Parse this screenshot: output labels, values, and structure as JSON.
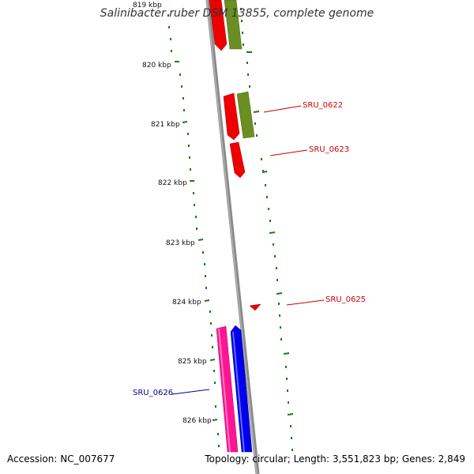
{
  "title": "Salinibacter ruber DSM 13855, complete genome",
  "footer": {
    "accession": "Accession: NC_007677",
    "summary": "Topology: circular; Length: 3,551,823 bp; Genes: 2,849"
  },
  "ticks": [
    "819 kbp",
    "820 kbp",
    "821 kbp",
    "822 kbp",
    "823 kbp",
    "824 kbp",
    "825 kbp",
    "826 kbp"
  ],
  "gene_labels": [
    {
      "name": "SRU_0622",
      "color": "#cc0000"
    },
    {
      "name": "SRU_0623",
      "color": "#cc0000"
    },
    {
      "name": "SRU_0625",
      "color": "#cc0000"
    },
    {
      "name": "SRU_0626",
      "color": "#000099"
    }
  ],
  "colors": {
    "backbone": "#8a8a8a",
    "tick_marks": "#1a7a1a",
    "cds_red": "#ee0000",
    "cds_olive": "#6b8e23",
    "cds_pink": "#ff1493",
    "cds_blue": "#0000ee"
  }
}
